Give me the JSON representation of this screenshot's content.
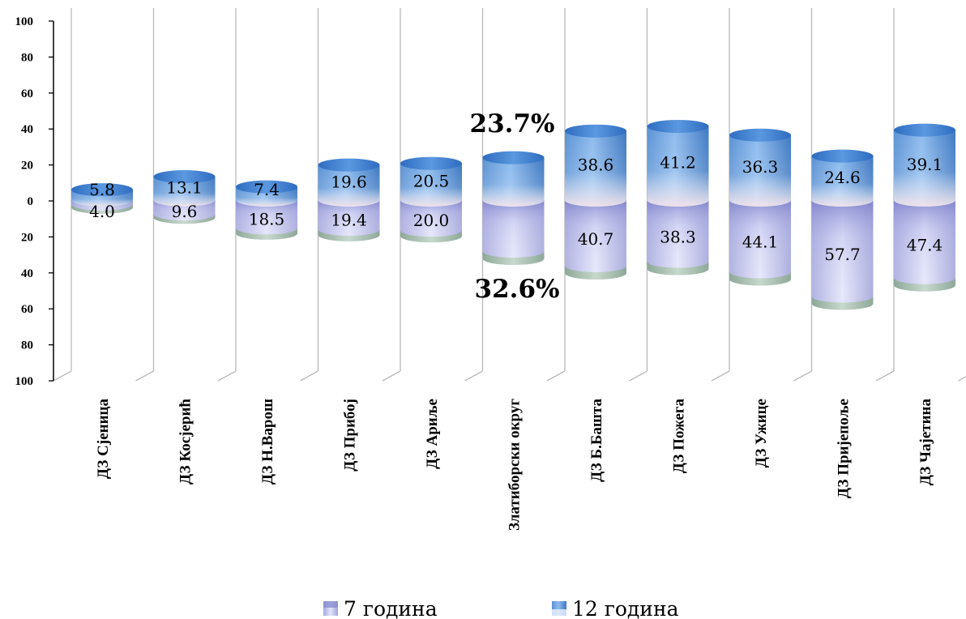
{
  "chart_data": {
    "type": "bar",
    "categories": [
      "ДЗ Сјеница",
      "ДЗ Косјерић",
      "ДЗ Н.Варош",
      "ДЗ Прибој",
      "ДЗ Ариље",
      "Златиборски округ",
      "ДЗ Б.Башта",
      "ДЗ Пожега",
      "ДЗ Ужице",
      "ДЗ Пријепоље",
      "ДЗ Чајетина"
    ],
    "series": [
      {
        "name": "7 година",
        "values": [
          4.0,
          9.6,
          18.5,
          19.4,
          20.0,
          32.6,
          40.7,
          38.3,
          44.1,
          57.7,
          47.4
        ],
        "labels": [
          "4.0",
          "9.6",
          "18.5",
          "19.4",
          "20.0",
          "",
          "40.7",
          "38.3",
          "44.1",
          "57.7",
          "47.4"
        ],
        "color": "#9c9fd8"
      },
      {
        "name": "12 година",
        "values": [
          5.8,
          13.1,
          7.4,
          19.6,
          20.5,
          23.7,
          38.6,
          41.2,
          36.3,
          24.6,
          39.1
        ],
        "labels": [
          "5.8",
          "13.1",
          "7.4",
          "19.6",
          "20.5",
          "",
          "38.6",
          "41.2",
          "36.3",
          "24.6",
          "39.1"
        ],
        "color": "#3f8fe6"
      }
    ],
    "y_ticks": [
      "100",
      "80",
      "60",
      "40",
      "20",
      "0",
      "20",
      "40",
      "60",
      "80",
      "100"
    ],
    "ylim_up": [
      0,
      100
    ],
    "ylim_down": [
      0,
      100
    ],
    "callouts": {
      "top": "23.7%",
      "bottom": "32.6%"
    },
    "legend": {
      "position": "bottom",
      "items": [
        "7 година",
        "12 година"
      ]
    }
  }
}
